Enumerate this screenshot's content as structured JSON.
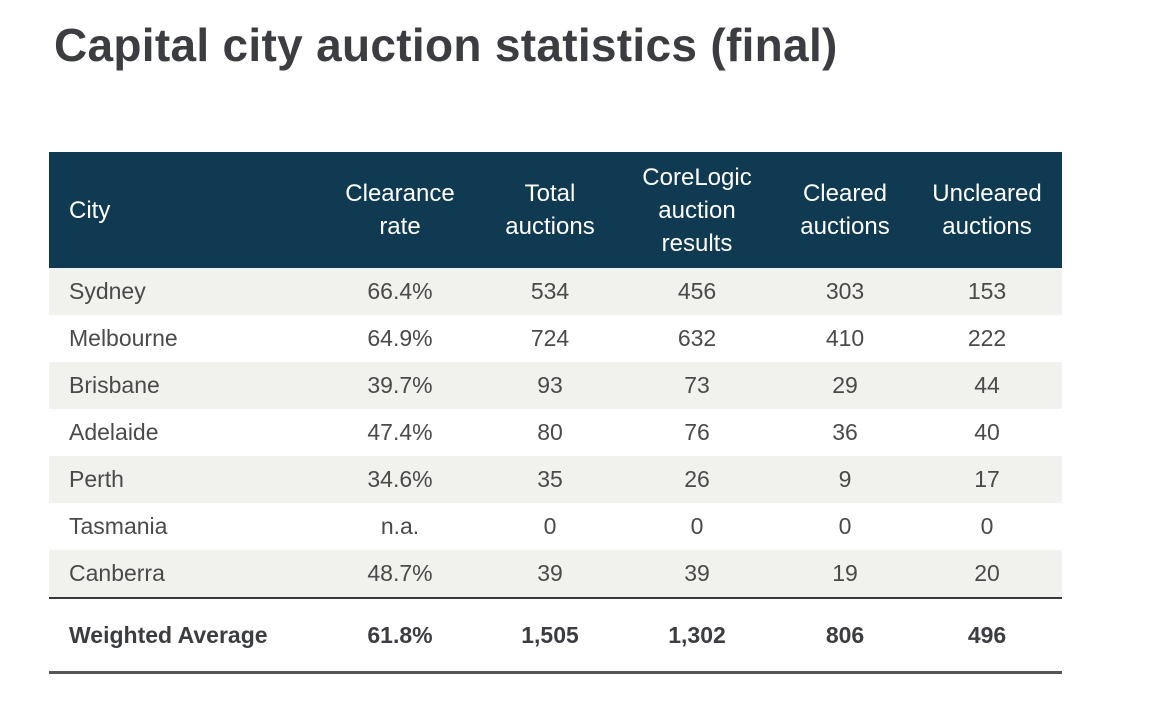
{
  "page": {
    "title": "Capital city auction statistics (final)"
  },
  "table": {
    "headers": {
      "city": "City",
      "clearance_rate": [
        "Clearance",
        "rate"
      ],
      "total_auctions": [
        "Total",
        "auctions"
      ],
      "corelogic_results": [
        "CoreLogic",
        "auction",
        "results"
      ],
      "cleared_auctions": [
        "Cleared",
        "auctions"
      ],
      "uncleared_auctions": [
        "Uncleared",
        "auctions"
      ]
    },
    "rows": [
      {
        "city": "Sydney",
        "clearance_rate": "66.4%",
        "total_auctions": "534",
        "corelogic_results": "456",
        "cleared_auctions": "303",
        "uncleared_auctions": "153"
      },
      {
        "city": "Melbourne",
        "clearance_rate": "64.9%",
        "total_auctions": "724",
        "corelogic_results": "632",
        "cleared_auctions": "410",
        "uncleared_auctions": "222"
      },
      {
        "city": "Brisbane",
        "clearance_rate": "39.7%",
        "total_auctions": "93",
        "corelogic_results": "73",
        "cleared_auctions": "29",
        "uncleared_auctions": "44"
      },
      {
        "city": "Adelaide",
        "clearance_rate": "47.4%",
        "total_auctions": "80",
        "corelogic_results": "76",
        "cleared_auctions": "36",
        "uncleared_auctions": "40"
      },
      {
        "city": "Perth",
        "clearance_rate": "34.6%",
        "total_auctions": "35",
        "corelogic_results": "26",
        "cleared_auctions": "9",
        "uncleared_auctions": "17"
      },
      {
        "city": "Tasmania",
        "clearance_rate": "n.a.",
        "total_auctions": "0",
        "corelogic_results": "0",
        "cleared_auctions": "0",
        "uncleared_auctions": "0"
      },
      {
        "city": "Canberra",
        "clearance_rate": "48.7%",
        "total_auctions": "39",
        "corelogic_results": "39",
        "cleared_auctions": "19",
        "uncleared_auctions": "20"
      }
    ],
    "total": {
      "city": "Weighted Average",
      "clearance_rate": "61.8%",
      "total_auctions": "1,505",
      "corelogic_results": "1,302",
      "cleared_auctions": "806",
      "uncleared_auctions": "496"
    }
  },
  "colors": {
    "header_bg": "#103a52",
    "stripe_bg": "#f1f1ee"
  }
}
